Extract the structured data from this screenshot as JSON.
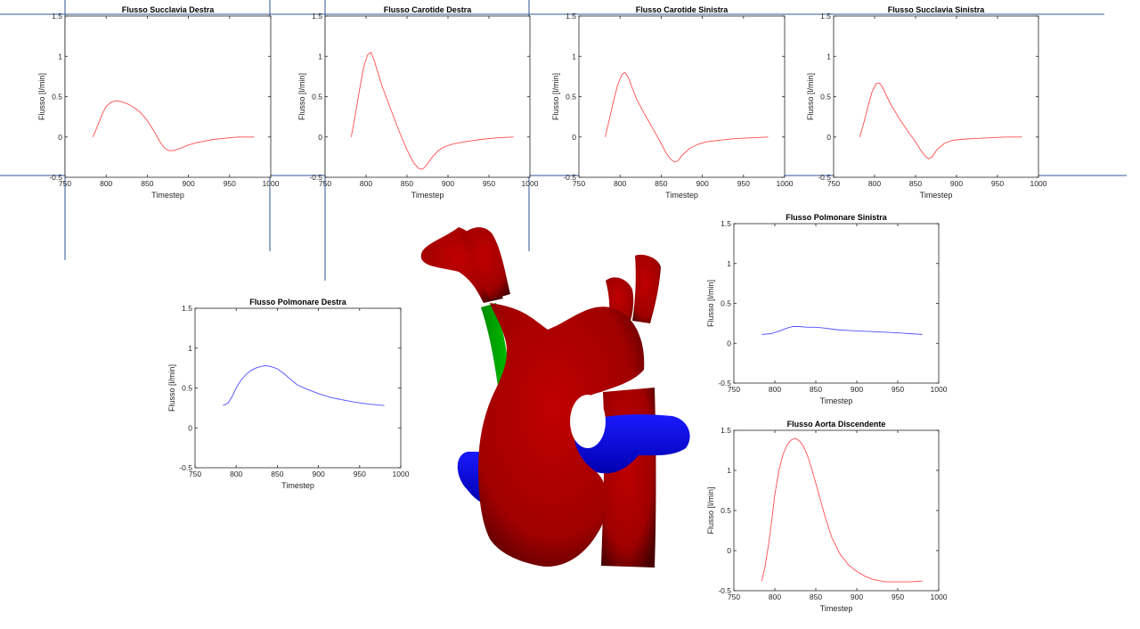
{
  "colors": {
    "arterial_series": "#ff4d4d",
    "pulmonary_series": "#4d4dff",
    "guide_lines": "#2f5597",
    "model_vessel": "#a30000",
    "model_pulmonary": "#0000ee",
    "model_shunt": "#00a000"
  },
  "heart_model": {
    "description_icon": "3d-aorta-model",
    "parts": [
      "aortic-arch",
      "pulmonary-artery",
      "shunt"
    ]
  },
  "chart_data": [
    {
      "id": "succlavia-destra",
      "type": "line",
      "title": "Flusso Succlavia Destra",
      "xlabel": "Timestep",
      "ylabel": "Flusso [l/min]",
      "xlim": [
        750,
        1000
      ],
      "ylim": [
        -0.5,
        1.5
      ],
      "xticks": [
        "750",
        "800",
        "850",
        "900",
        "950",
        "1000"
      ],
      "yticks": [
        "-0.5",
        "0",
        "0.5",
        "1",
        "1.5"
      ],
      "color": "#ff4d4d",
      "x": [
        784,
        790,
        795,
        800,
        806,
        812,
        818,
        824,
        830,
        836,
        842,
        848,
        854,
        860,
        866,
        871,
        876,
        882,
        890,
        900,
        910,
        920,
        930,
        940,
        950,
        960,
        970,
        980
      ],
      "y": [
        0.0,
        0.15,
        0.28,
        0.38,
        0.43,
        0.45,
        0.44,
        0.42,
        0.39,
        0.35,
        0.3,
        0.23,
        0.14,
        0.04,
        -0.07,
        -0.14,
        -0.17,
        -0.17,
        -0.14,
        -0.1,
        -0.07,
        -0.05,
        -0.03,
        -0.02,
        -0.01,
        0.0,
        0.0,
        0.0
      ]
    },
    {
      "id": "carotide-destra",
      "type": "line",
      "title": "Flusso Carotide Destra",
      "xlabel": "Timestep",
      "ylabel": "Flusso [l/min]",
      "xlim": [
        750,
        1000
      ],
      "ylim": [
        -0.5,
        1.5
      ],
      "xticks": [
        "750",
        "800",
        "850",
        "900",
        "950",
        "1000"
      ],
      "yticks": [
        "-0.5",
        "0",
        "0.5",
        "1",
        "1.5"
      ],
      "color": "#ff4d4d",
      "x": [
        782,
        787,
        792,
        797,
        802,
        806,
        810,
        815,
        820,
        830,
        840,
        850,
        858,
        864,
        869,
        874,
        880,
        888,
        896,
        905,
        920,
        940,
        960,
        980
      ],
      "y": [
        0.0,
        0.28,
        0.58,
        0.86,
        1.02,
        1.05,
        0.95,
        0.78,
        0.62,
        0.35,
        0.08,
        -0.16,
        -0.32,
        -0.39,
        -0.4,
        -0.35,
        -0.26,
        -0.17,
        -0.12,
        -0.09,
        -0.06,
        -0.03,
        -0.01,
        0.0
      ]
    },
    {
      "id": "carotide-sinistra",
      "type": "line",
      "title": "Flusso Carotide Sinistra",
      "xlabel": "Timestep",
      "ylabel": "Flusso [l/min]",
      "xlim": [
        750,
        1000
      ],
      "ylim": [
        -0.5,
        1.5
      ],
      "xticks": [
        "750",
        "800",
        "850",
        "900",
        "950",
        "1000"
      ],
      "yticks": [
        "-0.5",
        "0",
        "0.5",
        "1",
        "1.5"
      ],
      "color": "#ff4d4d",
      "x": [
        782,
        787,
        792,
        797,
        802,
        806,
        810,
        815,
        820,
        830,
        840,
        850,
        856,
        862,
        866,
        870,
        876,
        885,
        895,
        905,
        920,
        940,
        960,
        980
      ],
      "y": [
        0.0,
        0.22,
        0.44,
        0.64,
        0.77,
        0.8,
        0.74,
        0.6,
        0.47,
        0.28,
        0.1,
        -0.08,
        -0.2,
        -0.28,
        -0.31,
        -0.3,
        -0.22,
        -0.14,
        -0.09,
        -0.06,
        -0.04,
        -0.02,
        -0.01,
        0.0
      ]
    },
    {
      "id": "succlavia-sinistra",
      "type": "line",
      "title": "Flusso Succlavia Sinistra",
      "xlabel": "Timestep",
      "ylabel": "Flusso [l/min]",
      "xlim": [
        750,
        1000
      ],
      "ylim": [
        -0.5,
        1.5
      ],
      "xticks": [
        "750",
        "800",
        "850",
        "900",
        "950",
        "1000"
      ],
      "yticks": [
        "-0.5",
        "0",
        "0.5",
        "1",
        "1.5"
      ],
      "color": "#ff4d4d",
      "x": [
        782,
        787,
        792,
        797,
        802,
        806,
        810,
        815,
        820,
        830,
        840,
        850,
        856,
        862,
        866,
        870,
        876,
        885,
        895,
        905,
        920,
        940,
        960,
        980
      ],
      "y": [
        0.0,
        0.18,
        0.38,
        0.56,
        0.66,
        0.67,
        0.61,
        0.5,
        0.4,
        0.23,
        0.08,
        -0.06,
        -0.16,
        -0.24,
        -0.27,
        -0.25,
        -0.16,
        -0.08,
        -0.04,
        -0.03,
        -0.02,
        -0.01,
        0.0,
        0.0
      ]
    },
    {
      "id": "polmonare-destra",
      "type": "line",
      "title": "Flusso Polmonare Destra",
      "xlabel": "Timestep",
      "ylabel": "Flusso [l/min]",
      "xlim": [
        750,
        1000
      ],
      "ylim": [
        -0.5,
        1.5
      ],
      "xticks": [
        "750",
        "800",
        "850",
        "900",
        "950",
        "1000"
      ],
      "yticks": [
        "-0.5",
        "0",
        "0.5",
        "1",
        "1.5"
      ],
      "color": "#4d4dff",
      "x": [
        784,
        790,
        795,
        800,
        806,
        812,
        818,
        824,
        830,
        836,
        842,
        850,
        858,
        866,
        874,
        885,
        900,
        915,
        930,
        945,
        960,
        980
      ],
      "y": [
        0.28,
        0.31,
        0.39,
        0.5,
        0.6,
        0.67,
        0.72,
        0.75,
        0.77,
        0.78,
        0.77,
        0.74,
        0.68,
        0.61,
        0.54,
        0.49,
        0.43,
        0.38,
        0.35,
        0.32,
        0.3,
        0.28
      ]
    },
    {
      "id": "polmonare-sinistra",
      "type": "line",
      "title": "Flusso Polmonare Sinistra",
      "xlabel": "Timestep",
      "ylabel": "Flusso [l/min]",
      "xlim": [
        750,
        1000
      ],
      "ylim": [
        -0.5,
        1.5
      ],
      "xticks": [
        "750",
        "800",
        "850",
        "900",
        "950",
        "1000"
      ],
      "yticks": [
        "-0.5",
        "0",
        "0.5",
        "1",
        "1.5"
      ],
      "color": "#4d4dff",
      "x": [
        784,
        795,
        805,
        815,
        822,
        830,
        840,
        850,
        860,
        875,
        890,
        910,
        930,
        950,
        965,
        980
      ],
      "y": [
        0.11,
        0.12,
        0.15,
        0.19,
        0.21,
        0.21,
        0.2,
        0.2,
        0.19,
        0.17,
        0.16,
        0.15,
        0.14,
        0.13,
        0.12,
        0.11
      ]
    },
    {
      "id": "aorta-discendente",
      "type": "line",
      "title": "Flusso Aorta Discendente",
      "xlabel": "Timestep",
      "ylabel": "Flusso [l/min]",
      "xlim": [
        750,
        1000
      ],
      "ylim": [
        -0.5,
        1.5
      ],
      "xticks": [
        "750",
        "800",
        "850",
        "900",
        "950",
        "1000"
      ],
      "yticks": [
        "-0.5",
        "0",
        "0.5",
        "1",
        "1.5"
      ],
      "color": "#ff4d4d",
      "x": [
        784,
        788,
        792,
        796,
        800,
        805,
        810,
        815,
        820,
        825,
        830,
        835,
        840,
        845,
        850,
        856,
        862,
        870,
        880,
        890,
        900,
        910,
        920,
        935,
        950,
        965,
        980
      ],
      "y": [
        -0.38,
        -0.2,
        0.05,
        0.35,
        0.7,
        1.0,
        1.2,
        1.32,
        1.38,
        1.4,
        1.37,
        1.3,
        1.18,
        1.02,
        0.84,
        0.62,
        0.4,
        0.15,
        -0.05,
        -0.18,
        -0.26,
        -0.32,
        -0.36,
        -0.39,
        -0.39,
        -0.39,
        -0.38
      ]
    }
  ]
}
